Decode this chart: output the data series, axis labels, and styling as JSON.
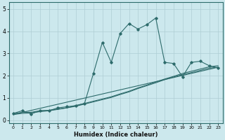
{
  "xlabel": "Humidex (Indice chaleur)",
  "background_color": "#cce8ed",
  "line_color": "#2d6b6b",
  "grid_color": "#aecdd4",
  "xlim": [
    -0.5,
    23.5
  ],
  "ylim": [
    -0.15,
    5.3
  ],
  "xticks": [
    0,
    1,
    2,
    3,
    4,
    5,
    6,
    7,
    8,
    9,
    10,
    11,
    12,
    13,
    14,
    15,
    16,
    17,
    18,
    19,
    20,
    21,
    22,
    23
  ],
  "yticks": [
    0,
    1,
    2,
    3,
    4,
    5
  ],
  "series1_x": [
    0,
    1,
    2,
    3,
    4,
    5,
    6,
    7,
    8,
    9,
    10,
    11,
    12,
    13,
    14,
    15,
    16,
    17,
    18,
    19,
    20,
    21,
    22,
    23
  ],
  "series1_y": [
    0.3,
    0.42,
    0.28,
    0.42,
    0.42,
    0.55,
    0.6,
    0.65,
    0.75,
    2.1,
    3.5,
    2.6,
    3.9,
    4.35,
    4.1,
    4.3,
    4.6,
    2.6,
    2.55,
    1.95,
    2.6,
    2.65,
    2.45,
    2.35
  ],
  "series2_x": [
    0,
    1,
    2,
    3,
    4,
    5,
    6,
    7,
    8,
    9,
    10,
    11,
    12,
    13,
    14,
    15,
    16,
    17,
    18,
    19,
    20,
    21,
    22,
    23
  ],
  "series2_y": [
    0.28,
    0.35,
    0.35,
    0.42,
    0.44,
    0.5,
    0.55,
    0.65,
    0.75,
    0.85,
    0.95,
    1.05,
    1.18,
    1.3,
    1.45,
    1.58,
    1.72,
    1.85,
    1.97,
    2.1,
    2.2,
    2.3,
    2.4,
    2.45
  ],
  "series3_x": [
    0,
    1,
    2,
    3,
    4,
    5,
    6,
    7,
    8,
    9,
    10,
    11,
    12,
    13,
    14,
    15,
    16,
    17,
    18,
    19,
    20,
    21,
    22,
    23
  ],
  "series3_y": [
    0.25,
    0.3,
    0.32,
    0.38,
    0.42,
    0.48,
    0.55,
    0.62,
    0.72,
    0.82,
    0.92,
    1.02,
    1.15,
    1.27,
    1.42,
    1.55,
    1.68,
    1.82,
    1.94,
    2.05,
    2.14,
    2.24,
    2.34,
    2.38
  ],
  "series4_x": [
    0,
    23
  ],
  "series4_y": [
    0.25,
    2.38
  ]
}
